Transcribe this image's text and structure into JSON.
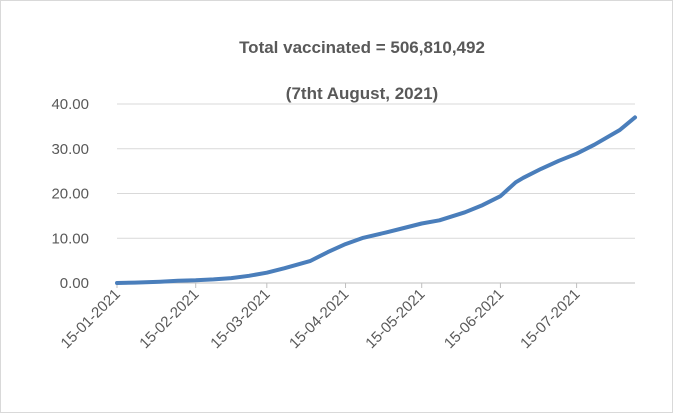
{
  "chart_data": {
    "type": "line",
    "title": "Total vaccinated =  506,810,492",
    "subtitle": "(7tht August, 2021)",
    "x": [
      "15-01-2021",
      "22-01-2021",
      "01-02-2021",
      "08-02-2021",
      "15-02-2021",
      "22-02-2021",
      "01-03-2021",
      "08-03-2021",
      "15-03-2021",
      "22-03-2021",
      "01-04-2021",
      "08-04-2021",
      "15-04-2021",
      "22-04-2021",
      "01-05-2021",
      "08-05-2021",
      "15-05-2021",
      "22-05-2021",
      "01-06-2021",
      "08-06-2021",
      "15-06-2021",
      "21-06-2021",
      "24-06-2021",
      "01-07-2021",
      "08-07-2021",
      "15-07-2021",
      "22-07-2021",
      "01-08-2021",
      "07-08-2021"
    ],
    "series": [
      {
        "name": "Total vaccinated",
        "color": "#4a7ebb",
        "values": [
          0.0,
          0.1,
          0.3,
          0.5,
          0.6,
          0.8,
          1.1,
          1.6,
          2.3,
          3.3,
          4.9,
          6.9,
          8.7,
          10.1,
          11.3,
          12.3,
          13.3,
          14.0,
          15.8,
          17.4,
          19.4,
          22.5,
          23.5,
          25.5,
          27.3,
          28.9,
          30.9,
          34.2,
          37.0
        ]
      }
    ],
    "xlim": [
      "15-01-2021",
      "07-08-2021"
    ],
    "xticks": [
      "15-01-2021",
      "15-02-2021",
      "15-03-2021",
      "15-04-2021",
      "15-05-2021",
      "15-06-2021",
      "15-07-2021"
    ],
    "ylim": [
      0,
      40
    ],
    "yticks": [
      {
        "value": 0,
        "label": "0.00"
      },
      {
        "value": 10,
        "label": "10.00"
      },
      {
        "value": 20,
        "label": "20.00"
      },
      {
        "value": 30,
        "label": "30.00"
      },
      {
        "value": 40,
        "label": "40.00"
      }
    ],
    "grid": true
  }
}
